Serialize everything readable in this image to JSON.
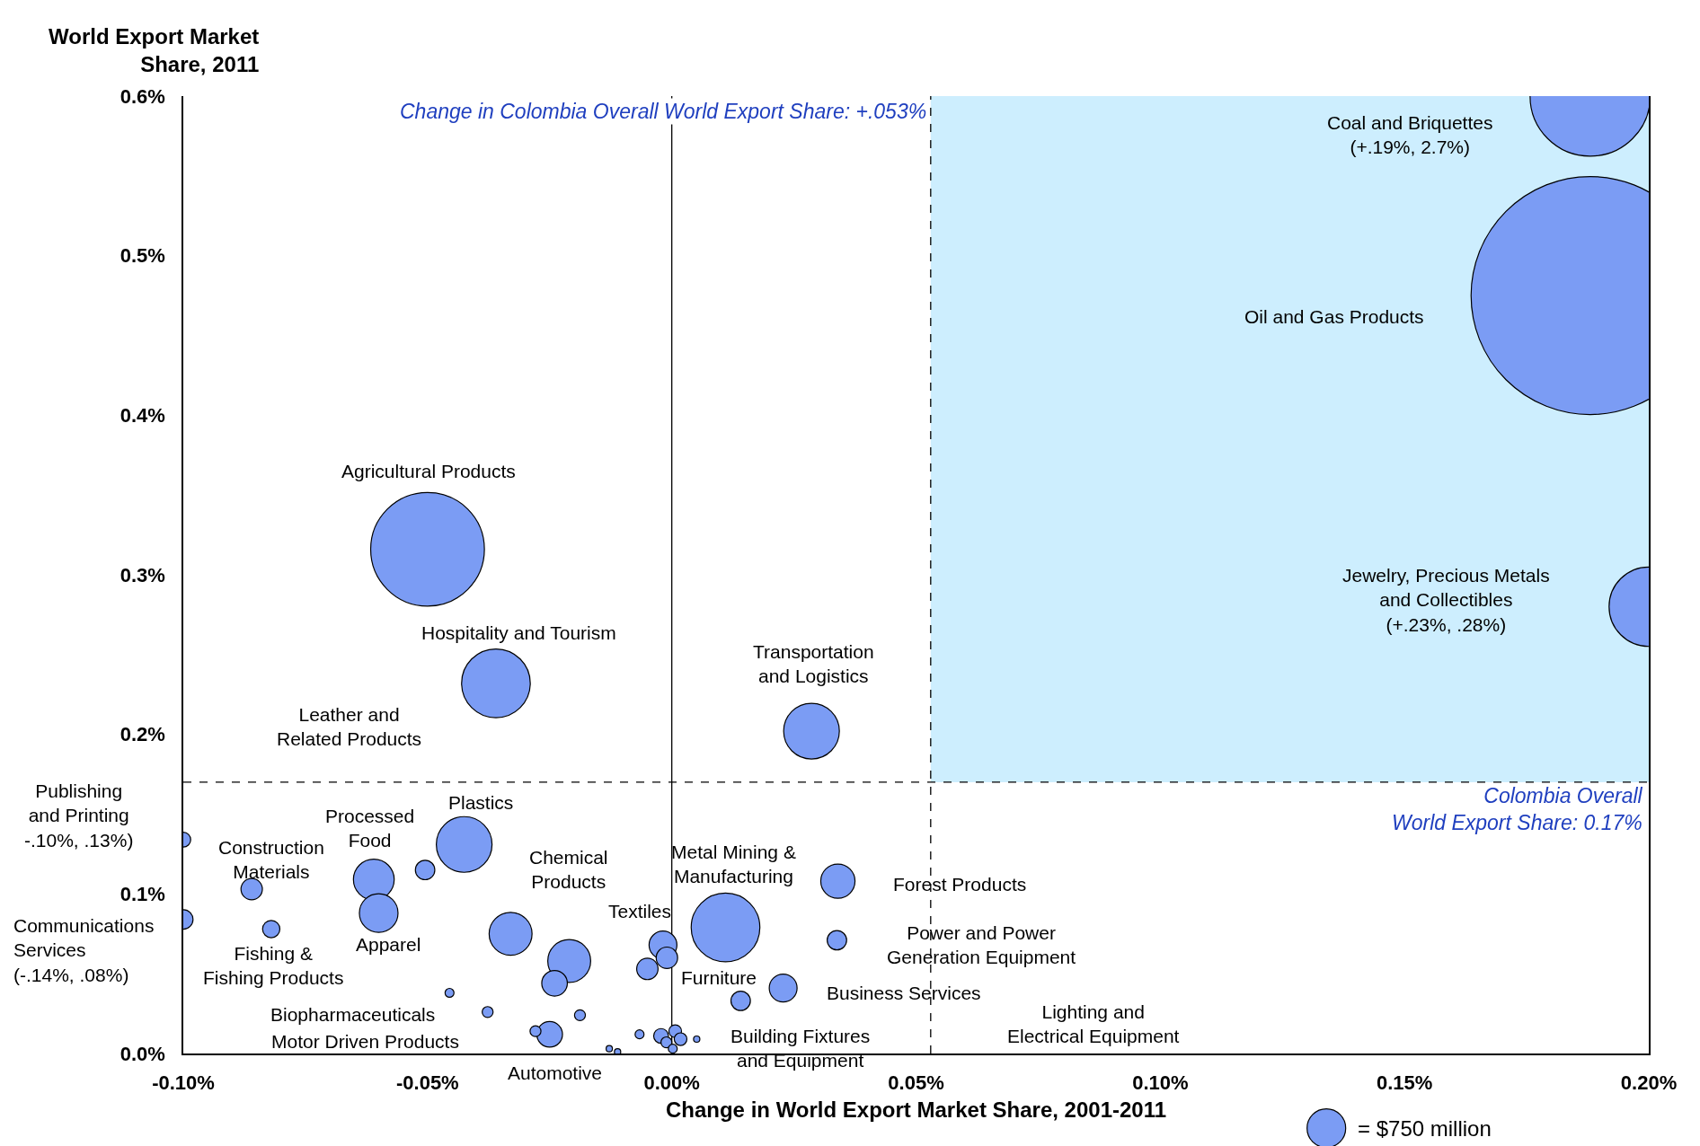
{
  "chart_data": {
    "type": "bubble",
    "xlabel": "Change in World Export Market Share, 2001-2011",
    "ylabel": "World Export Market\nShare, 2011",
    "x": [
      0.188,
      0.188,
      0.2,
      -0.05,
      -0.036,
      0.0286,
      -0.0425,
      -0.0505,
      -0.1,
      -0.086,
      -0.061,
      -0.06,
      -0.1,
      -0.082,
      -0.033,
      -0.021,
      -0.024,
      -0.025,
      0.011,
      -0.0018,
      -0.001,
      -0.005,
      0.034,
      0.0338,
      0.0228,
      0.0141,
      -0.0455,
      -0.0377,
      -0.0279,
      -0.0188,
      -0.0128,
      -0.0111,
      -0.0066,
      -0.0022,
      0.0007,
      0.0018,
      -0.0011,
      0.0002,
      0.0051
    ],
    "values": [
      0.6,
      0.475,
      0.28,
      0.316,
      0.232,
      0.202,
      0.131,
      0.115,
      0.134,
      0.103,
      0.109,
      0.088,
      0.084,
      0.078,
      0.075,
      0.058,
      0.044,
      0.012,
      0.079,
      0.068,
      0.06,
      0.053,
      0.108,
      0.071,
      0.041,
      0.033,
      0.038,
      0.026,
      0.014,
      0.024,
      0.003,
      0.001,
      0.012,
      0.011,
      0.014,
      0.009,
      0.007,
      0.003,
      0.009
    ],
    "sizes": [
      7260,
      28500,
      3170,
      6500,
      2370,
      1560,
      1560,
      190,
      110,
      230,
      835,
      750,
      190,
      150,
      925,
      925,
      330,
      330,
      2370,
      390,
      230,
      230,
      590,
      190,
      390,
      190,
      40,
      60,
      60,
      60,
      20,
      20,
      40,
      110,
      80,
      80,
      60,
      40,
      20
    ],
    "color": "#7b9cf4",
    "size_legend": [
      {
        "value": 750,
        "label": "= $750 million"
      }
    ],
    "xlim": [
      -0.1,
      0.2
    ],
    "ylim": [
      0,
      0.6
    ],
    "xticks": [
      {
        "value": -0.1,
        "label": "-0.10%"
      },
      {
        "value": -0.05,
        "label": "-0.05%"
      },
      {
        "value": 0,
        "label": "0.00%"
      },
      {
        "value": 0.05,
        "label": "0.05%"
      },
      {
        "value": 0.1,
        "label": "0.10%"
      },
      {
        "value": 0.15,
        "label": "0.15%"
      },
      {
        "value": 0.2,
        "label": "0.20%"
      }
    ],
    "yticks": [
      {
        "value": 0,
        "label": "0.0%"
      },
      {
        "value": 0.1,
        "label": "0.1%"
      },
      {
        "value": 0.2,
        "label": "0.2%"
      },
      {
        "value": 0.3,
        "label": "0.3%"
      },
      {
        "value": 0.4,
        "label": "0.4%"
      },
      {
        "value": 0.5,
        "label": "0.5%"
      },
      {
        "value": 0.6,
        "label": "0.6%"
      }
    ],
    "grid": false,
    "bands": [
      {
        "axis": "x",
        "from": 0.053,
        "to": 0.2,
        "color": "#cdeefe"
      }
    ],
    "ref_lines": [
      {
        "axis": "x",
        "value": 0.053,
        "label": "Change in Colombia Overall World Export Share: +.053%",
        "line_style": "dashed"
      },
      {
        "axis": "y",
        "value": 0.17,
        "label": "Colombia Overall\nWorld Export Share: 0.17%",
        "line_style": "dashed"
      },
      {
        "axis": "x",
        "value": 0,
        "line_style": "solid"
      }
    ],
    "annotations": [
      "Coal and Briquettes\n(+.19%, 2.7%)",
      "Oil and Gas Products",
      "Jewelry, Precious Metals\nand Collectibles\n(+.23%, .28%)",
      "Agricultural Products",
      "Hospitality and Tourism",
      "Transportation\nand Logistics",
      "Leather and\nRelated Products",
      "Plastics",
      "Processed\nFood",
      "Publishing\nand Printing\n-.10%, .13%)",
      "Construction\nMaterials",
      "Communications\nServices\n(-.14%, .08%)",
      "Fishing &\nFishing Products",
      "Apparel",
      "Chemical\nProducts",
      "Metal Mining &\nManufacturing",
      "Textiles",
      "Furniture",
      "Forest Products",
      "Power and Power\nGeneration Equipment",
      "Business Services",
      "Lighting and\nElectrical Equipment",
      "Building Fixtures\nand Equipment",
      "Biopharmaceuticals",
      "Motor Driven Products",
      "Automotive"
    ]
  }
}
